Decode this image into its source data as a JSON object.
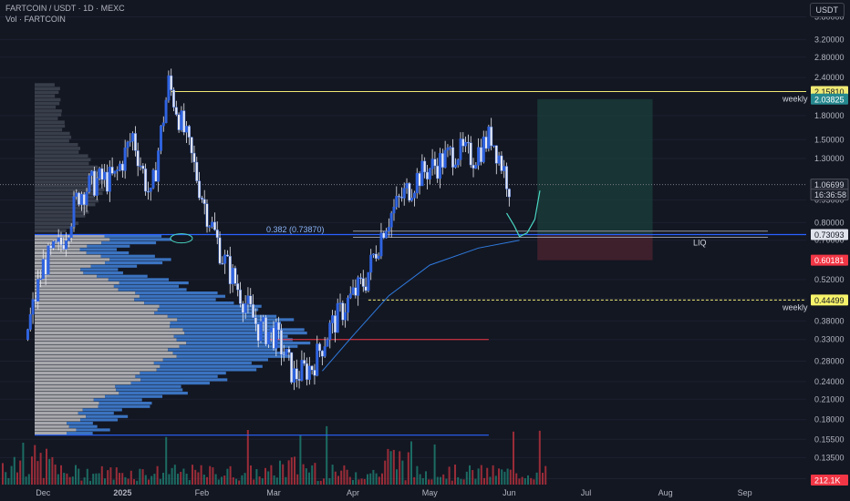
{
  "header": {
    "symbol_line": "FARTCOIN / USDT · 1D · MEXC",
    "volume_line": "Vol · FARTCOIN"
  },
  "price_axis": {
    "currency": "USDT",
    "ticks": [
      "3.80000",
      "3.20000",
      "2.80000",
      "2.40000",
      "1.80000",
      "1.50000",
      "1.30000",
      "0.95000",
      "0.80000",
      "0.70000",
      "0.52000",
      "0.45000",
      "0.38000",
      "0.33000",
      "0.28000",
      "0.24000",
      "0.21000",
      "0.18000",
      "0.15500",
      "0.13500",
      "0.11500"
    ],
    "tags": [
      {
        "label": "2.15810",
        "bg": "#f0ea74",
        "fg": "#131722",
        "bordered": false
      },
      {
        "label": "2.03825",
        "bg": "#26898f",
        "fg": "#ffffff",
        "bordered": false
      },
      {
        "label": "1.06699",
        "bg": "#1e222d",
        "fg": "#d1d4dc",
        "bordered": true
      },
      {
        "label": "16:36:58",
        "bg": "#1e222d",
        "fg": "#d1d4dc",
        "bordered": true
      },
      {
        "label": "0.73093",
        "bg": "#e0e3eb",
        "fg": "#131722",
        "bordered": false
      },
      {
        "label": "0.60181",
        "bg": "#f23645",
        "fg": "#ffffff",
        "bordered": false
      },
      {
        "label": "0.44499",
        "bg": "#f7f36a",
        "fg": "#131722",
        "bordered": false
      },
      {
        "label": "212.1K",
        "bg": "#f23645",
        "fg": "#ffffff",
        "bordered": false
      }
    ]
  },
  "time_axis": {
    "labels": [
      "Dec",
      "2025",
      "Feb",
      "Mar",
      "Apr",
      "May",
      "Jun",
      "Jul",
      "Aug",
      "Sep"
    ]
  },
  "annotations": {
    "weekly_top": "weekly",
    "weekly_bottom": "weekly",
    "fib": "0.382 (0.73870)",
    "liq": "LIQ"
  },
  "colors": {
    "background": "#131722",
    "candle": "#2f63e0",
    "candle_wick": "#e8eaf0",
    "volume_up": "#1f7a6f",
    "volume_down": "#b2303c",
    "profile_gray": "#b8b8bc",
    "profile_blue": "#3d78c9",
    "yellow_line": "#f0ea74",
    "blue_line": "#2962ff",
    "red_line": "#f23645",
    "long_zone": "#1b3f3b",
    "stop_zone": "#4a2330",
    "ma_line": "#2f7be0",
    "projection": "#4ad8c4"
  },
  "chart_data": {
    "type": "candlestick",
    "title": "FARTCOIN / USDT · 1D · MEXC",
    "subtitle": "Vol · FARTCOIN",
    "scale": "log",
    "ylim": [
      0.11,
      4.2
    ],
    "x_range": [
      "2024-11-17",
      "2025-09-20"
    ],
    "current_price": 1.06699,
    "horizontal_levels": [
      {
        "label": "weekly",
        "value": 2.1581
      },
      {
        "label": "weekly",
        "value": 0.44499
      },
      {
        "label": "0.382 (0.73870)",
        "value": 0.7387
      },
      {
        "label": "",
        "value": 0.33
      },
      {
        "label": "",
        "value": 0.16
      }
    ],
    "position": {
      "entry": 0.73093,
      "target": 2.03825,
      "stop": 0.60181
    },
    "closes_sampled": [
      {
        "date": "2024-11-24",
        "close": 0.33
      },
      {
        "date": "2024-12-01",
        "close": 0.58
      },
      {
        "date": "2024-12-08",
        "close": 0.68
      },
      {
        "date": "2024-12-15",
        "close": 1.0
      },
      {
        "date": "2024-12-22",
        "close": 1.1
      },
      {
        "date": "2024-12-29",
        "close": 1.12
      },
      {
        "date": "2025-01-05",
        "close": 1.55
      },
      {
        "date": "2025-01-12",
        "close": 0.95
      },
      {
        "date": "2025-01-19",
        "close": 2.3
      },
      {
        "date": "2025-01-26",
        "close": 1.5
      },
      {
        "date": "2025-02-02",
        "close": 0.92
      },
      {
        "date": "2025-02-09",
        "close": 0.62
      },
      {
        "date": "2025-02-16",
        "close": 0.47
      },
      {
        "date": "2025-02-23",
        "close": 0.36
      },
      {
        "date": "2025-03-02",
        "close": 0.34
      },
      {
        "date": "2025-03-09",
        "close": 0.25
      },
      {
        "date": "2025-03-16",
        "close": 0.27
      },
      {
        "date": "2025-03-23",
        "close": 0.36
      },
      {
        "date": "2025-03-30",
        "close": 0.44
      },
      {
        "date": "2025-04-06",
        "close": 0.52
      },
      {
        "date": "2025-04-13",
        "close": 0.78
      },
      {
        "date": "2025-04-20",
        "close": 0.97
      },
      {
        "date": "2025-04-27",
        "close": 1.15
      },
      {
        "date": "2025-05-04",
        "close": 1.25
      },
      {
        "date": "2025-05-11",
        "close": 1.38
      },
      {
        "date": "2025-05-18",
        "close": 1.32
      },
      {
        "date": "2025-05-25",
        "close": 1.55
      },
      {
        "date": "2025-06-01",
        "close": 1.07
      }
    ]
  }
}
